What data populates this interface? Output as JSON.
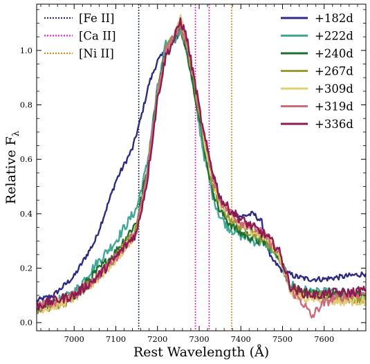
{
  "chart_data": {
    "type": "line",
    "xlabel": "Rest Wavelength (Å)",
    "ylabel": "Relative F",
    "ylabel_sub": "λ",
    "xlim": [
      6910,
      7700
    ],
    "ylim": [
      -0.03,
      1.17
    ],
    "xticks": [
      7000,
      7100,
      7200,
      7300,
      7400,
      7500,
      7600
    ],
    "xtick_labels": [
      "7000",
      "7100",
      "7200",
      "7300",
      "7400",
      "7500",
      "7600"
    ],
    "yticks": [
      0.0,
      0.2,
      0.4,
      0.6,
      0.8,
      1.0
    ],
    "ytick_labels": [
      "0.0",
      "0.2",
      "0.4",
      "0.6",
      "0.8",
      "1.0"
    ],
    "grid": false,
    "legend_left_position": "top-left",
    "legend_right_position": "top-right",
    "lines": [
      {
        "name": "[Fe II]",
        "x": 7155,
        "color": "#1f2a8c"
      },
      {
        "name": "[Ca II]",
        "x": 7291,
        "color": "#e51fe5"
      },
      {
        "name": "[Ca II]",
        "x": 7324,
        "color": "#e51fe5",
        "legend": false
      },
      {
        "name": "[Ni II]",
        "x": 7378,
        "color": "#e5870a"
      }
    ],
    "series": [
      {
        "name": "+182d",
        "color": "#2b2a8a",
        "x": [
          6910,
          6950,
          7000,
          7050,
          7080,
          7100,
          7120,
          7140,
          7160,
          7180,
          7200,
          7220,
          7240,
          7255,
          7270,
          7290,
          7310,
          7330,
          7350,
          7370,
          7400,
          7430,
          7450,
          7470,
          7500,
          7530,
          7560,
          7600,
          7650,
          7700
        ],
        "y": [
          0.08,
          0.1,
          0.17,
          0.3,
          0.43,
          0.52,
          0.58,
          0.64,
          0.75,
          0.88,
          0.96,
          1.0,
          1.03,
          1.07,
          1.0,
          0.84,
          0.69,
          0.56,
          0.45,
          0.41,
          0.39,
          0.4,
          0.37,
          0.24,
          0.19,
          0.17,
          0.16,
          0.16,
          0.17,
          0.18
        ]
      },
      {
        "name": "+222d",
        "color": "#3daa96",
        "x": [
          6910,
          6950,
          7000,
          7050,
          7100,
          7150,
          7175,
          7200,
          7220,
          7240,
          7255,
          7270,
          7290,
          7310,
          7330,
          7350,
          7370,
          7400,
          7430,
          7460,
          7490,
          7520,
          7550,
          7580,
          7620,
          7660,
          7700
        ],
        "y": [
          0.05,
          0.07,
          0.11,
          0.21,
          0.3,
          0.42,
          0.58,
          0.86,
          1.02,
          1.04,
          1.08,
          1.0,
          0.82,
          0.63,
          0.48,
          0.39,
          0.35,
          0.32,
          0.3,
          0.29,
          0.24,
          0.14,
          0.12,
          0.11,
          0.11,
          0.1,
          0.1
        ]
      },
      {
        "name": "+240d",
        "color": "#1d6e2a",
        "x": [
          6910,
          6950,
          7000,
          7050,
          7100,
          7150,
          7175,
          7200,
          7220,
          7240,
          7255,
          7270,
          7290,
          7310,
          7330,
          7350,
          7370,
          7400,
          7430,
          7460,
          7490,
          7520,
          7550,
          7580,
          7620,
          7660,
          7700
        ],
        "y": [
          0.05,
          0.07,
          0.1,
          0.18,
          0.26,
          0.37,
          0.56,
          0.85,
          1.0,
          1.05,
          1.08,
          1.01,
          0.84,
          0.66,
          0.5,
          0.41,
          0.37,
          0.33,
          0.31,
          0.29,
          0.25,
          0.13,
          0.11,
          0.1,
          0.1,
          0.1,
          0.1
        ]
      },
      {
        "name": "+267d",
        "color": "#9a9a2e",
        "x": [
          6910,
          6950,
          7000,
          7050,
          7100,
          7150,
          7175,
          7200,
          7220,
          7240,
          7255,
          7270,
          7290,
          7310,
          7330,
          7350,
          7370,
          7400,
          7430,
          7460,
          7490,
          7520,
          7550,
          7580,
          7620,
          7660,
          7700
        ],
        "y": [
          0.05,
          0.06,
          0.09,
          0.16,
          0.24,
          0.35,
          0.55,
          0.84,
          1.0,
          1.05,
          1.09,
          1.02,
          0.86,
          0.68,
          0.52,
          0.43,
          0.39,
          0.35,
          0.33,
          0.3,
          0.25,
          0.12,
          0.1,
          0.1,
          0.09,
          0.09,
          0.09
        ]
      },
      {
        "name": "+309d",
        "color": "#e6cb75",
        "x": [
          6910,
          6950,
          7000,
          7050,
          7100,
          7150,
          7175,
          7200,
          7220,
          7240,
          7255,
          7270,
          7290,
          7310,
          7330,
          7350,
          7370,
          7400,
          7430,
          7460,
          7490,
          7520,
          7550,
          7580,
          7620,
          7660,
          7700
        ],
        "y": [
          0.05,
          0.06,
          0.09,
          0.15,
          0.23,
          0.33,
          0.54,
          0.83,
          0.99,
          1.04,
          1.12,
          1.03,
          0.87,
          0.69,
          0.53,
          0.44,
          0.4,
          0.36,
          0.34,
          0.31,
          0.26,
          0.11,
          0.09,
          0.09,
          0.08,
          0.08,
          0.08
        ]
      },
      {
        "name": "+319d",
        "color": "#cf6a7a",
        "x": [
          6910,
          6950,
          7000,
          7050,
          7100,
          7150,
          7175,
          7200,
          7220,
          7240,
          7255,
          7270,
          7290,
          7310,
          7330,
          7350,
          7370,
          7400,
          7430,
          7460,
          7490,
          7520,
          7550,
          7570,
          7590,
          7620,
          7660,
          7700
        ],
        "y": [
          0.06,
          0.07,
          0.1,
          0.16,
          0.24,
          0.34,
          0.54,
          0.84,
          1.0,
          1.05,
          1.1,
          1.03,
          0.87,
          0.7,
          0.55,
          0.45,
          0.41,
          0.37,
          0.35,
          0.32,
          0.26,
          0.12,
          0.07,
          0.02,
          0.06,
          0.09,
          0.1,
          0.11
        ]
      },
      {
        "name": "+336d",
        "color": "#8c1b52",
        "x": [
          6910,
          6950,
          7000,
          7050,
          7100,
          7150,
          7175,
          7200,
          7220,
          7240,
          7255,
          7270,
          7290,
          7310,
          7330,
          7350,
          7370,
          7400,
          7430,
          7460,
          7490,
          7520,
          7550,
          7580,
          7620,
          7660,
          7700
        ],
        "y": [
          0.06,
          0.08,
          0.1,
          0.16,
          0.24,
          0.33,
          0.52,
          0.82,
          0.98,
          1.04,
          1.11,
          1.05,
          0.88,
          0.7,
          0.57,
          0.46,
          0.42,
          0.38,
          0.35,
          0.32,
          0.27,
          0.13,
          0.11,
          0.1,
          0.11,
          0.11,
          0.12
        ]
      }
    ]
  }
}
